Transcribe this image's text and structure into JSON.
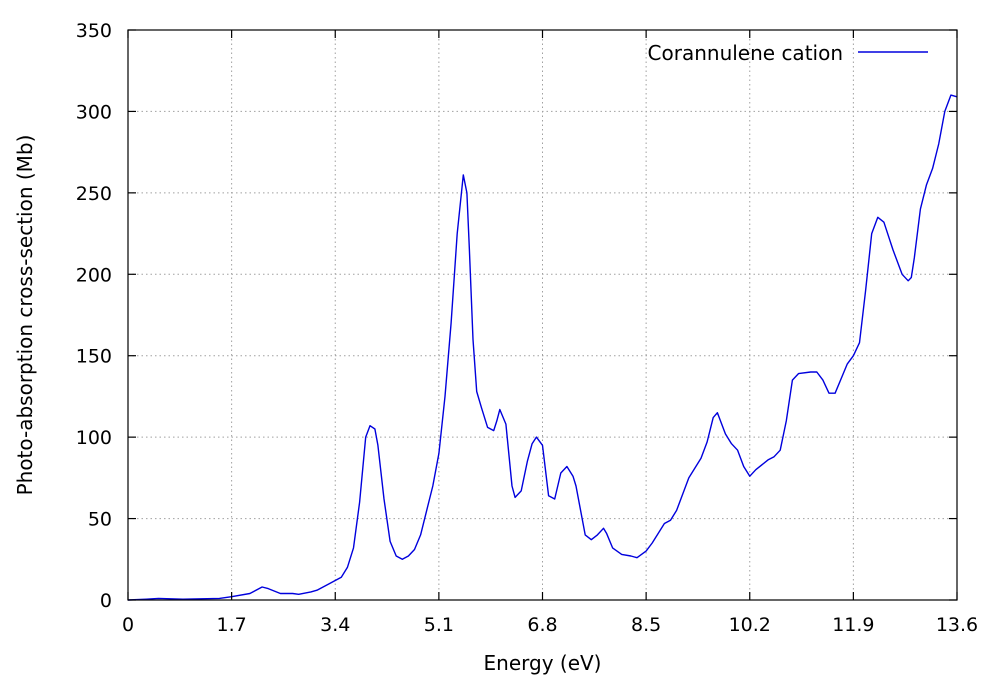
{
  "chart_data": {
    "type": "line",
    "xlabel": "Energy (eV)",
    "ylabel": "Photo-absorption cross-section (Mb)",
    "xlim": [
      0,
      13.6
    ],
    "ylim": [
      0,
      350
    ],
    "xticks": [
      0,
      1.7,
      3.4,
      5.1,
      6.8,
      8.5,
      10.2,
      11.9,
      13.6
    ],
    "xtick_labels": [
      "0",
      "1.7",
      "3.4",
      "5.1",
      "6.8",
      "8.5",
      "10.2",
      "11.9",
      "13.6"
    ],
    "yticks": [
      0,
      50,
      100,
      150,
      200,
      250,
      300,
      350
    ],
    "ytick_labels": [
      "0",
      "50",
      "100",
      "150",
      "200",
      "250",
      "300",
      "350"
    ],
    "grid": true,
    "legend_position": "top-right",
    "series": [
      {
        "name": "Corannulene cation",
        "color": "#0000dd",
        "x": [
          0,
          0.3,
          0.5,
          0.9,
          1.5,
          1.7,
          2.0,
          2.2,
          2.3,
          2.5,
          2.7,
          2.8,
          3.0,
          3.1,
          3.3,
          3.5,
          3.6,
          3.7,
          3.8,
          3.9,
          3.97,
          4.05,
          4.1,
          4.2,
          4.3,
          4.4,
          4.5,
          4.6,
          4.7,
          4.8,
          4.9,
          5.0,
          5.1,
          5.2,
          5.3,
          5.4,
          5.5,
          5.56,
          5.6,
          5.66,
          5.72,
          5.8,
          5.9,
          6.0,
          6.05,
          6.1,
          6.2,
          6.3,
          6.35,
          6.45,
          6.55,
          6.63,
          6.7,
          6.8,
          6.9,
          7.0,
          7.1,
          7.2,
          7.3,
          7.35,
          7.5,
          7.6,
          7.7,
          7.8,
          7.85,
          7.95,
          8.1,
          8.25,
          8.35,
          8.5,
          8.6,
          8.7,
          8.8,
          8.9,
          9.0,
          9.2,
          9.4,
          9.5,
          9.6,
          9.67,
          9.8,
          9.9,
          10.0,
          10.1,
          10.2,
          10.3,
          10.5,
          10.6,
          10.7,
          10.8,
          10.9,
          11.0,
          11.2,
          11.3,
          11.4,
          11.5,
          11.6,
          11.8,
          11.9,
          12.0,
          12.1,
          12.2,
          12.3,
          12.4,
          12.55,
          12.7,
          12.8,
          12.85,
          12.9,
          13.0,
          13.1,
          13.2,
          13.3,
          13.4,
          13.5,
          13.6
        ],
        "y": [
          0,
          0.5,
          1,
          0.5,
          1,
          2,
          4,
          8,
          7,
          4,
          4,
          3.5,
          5,
          6,
          10,
          14,
          20,
          32,
          60,
          100,
          107,
          105,
          95,
          62,
          36,
          27,
          25,
          27,
          31,
          40,
          55,
          70,
          90,
          125,
          170,
          225,
          261,
          250,
          215,
          160,
          128,
          118,
          106,
          104,
          110,
          117,
          108,
          70,
          63,
          67,
          85,
          96,
          100,
          95,
          64,
          62,
          78,
          82,
          76,
          70,
          40,
          37,
          40,
          44,
          41,
          32,
          28,
          27,
          26,
          30,
          35,
          41,
          47,
          49,
          55,
          75,
          87,
          97,
          112,
          115,
          102,
          96,
          92,
          82,
          76,
          80,
          86,
          88,
          92,
          110,
          135,
          139,
          140,
          140,
          135,
          127,
          127,
          145,
          150,
          158,
          190,
          225,
          235,
          232,
          215,
          200,
          196,
          198,
          210,
          240,
          255,
          265,
          280,
          300,
          310,
          309
        ]
      }
    ]
  }
}
